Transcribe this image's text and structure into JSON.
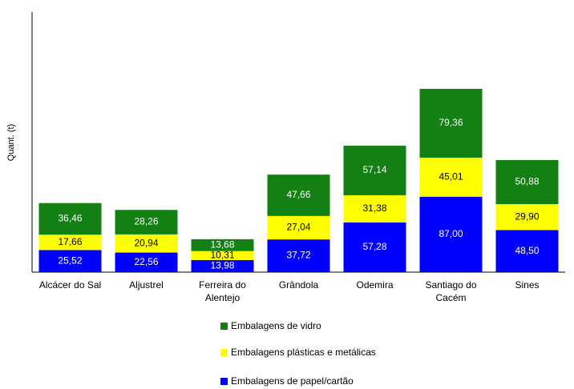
{
  "chart_data": {
    "type": "stacked_bar",
    "y_label": "Quant. (t)",
    "categories": [
      "Alcácer do Sal",
      "Aljustrel",
      "Ferreira do Alentejo",
      "Grândola",
      "Odemira",
      "Santiago do Cacém",
      "Sines"
    ],
    "ylim": [
      0,
      300
    ],
    "series": [
      {
        "name": "Embalagens de papel/cartão",
        "color": "#0000ff",
        "label_color": "#ffffff",
        "values": [
          25.52,
          22.56,
          13.98,
          37.72,
          57.28,
          87.0,
          48.5
        ],
        "value_labels": [
          "25,52",
          "22,56",
          "13,98",
          "37,72",
          "57,28",
          "87,00",
          "48,50"
        ]
      },
      {
        "name": "Embalagens plásticas e metálicas",
        "color": "#ffff00",
        "label_color": "#000000",
        "values": [
          17.66,
          20.94,
          10.31,
          27.04,
          31.38,
          45.01,
          29.9
        ],
        "value_labels": [
          "17,66",
          "20,94",
          "10,31",
          "27,04",
          "31,38",
          "45,01",
          "29,90"
        ]
      },
      {
        "name": "Embalagens de vidro",
        "color": "#138013",
        "label_color": "#ffffff",
        "values": [
          36.46,
          28.26,
          13.68,
          47.66,
          57.14,
          79.36,
          50.88
        ],
        "value_labels": [
          "36,46",
          "28,26",
          "13,68",
          "47,66",
          "57,14",
          "79,36",
          "50,88"
        ]
      }
    ],
    "legend": "bottom"
  }
}
